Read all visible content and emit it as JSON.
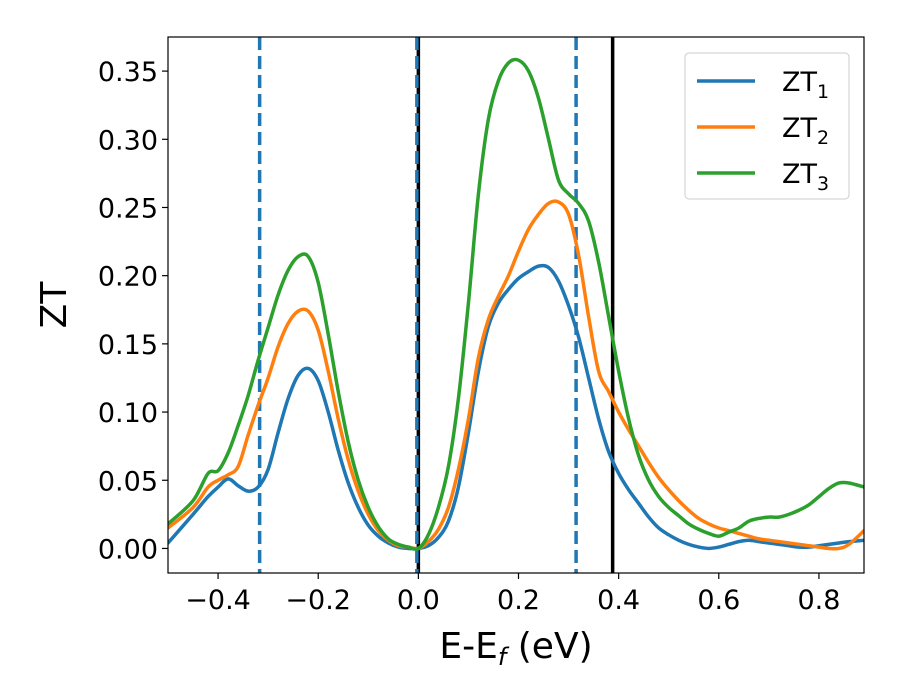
{
  "chart_data": {
    "type": "line",
    "xlabel": "E-E",
    "xlabel_sub": "f",
    "xlabel_unit": " (eV)",
    "ylabel": "ZT",
    "xlim": [
      -0.5,
      0.89
    ],
    "ylim": [
      -0.018,
      0.375
    ],
    "xticks": [
      -0.4,
      -0.2,
      0.0,
      0.2,
      0.4,
      0.6,
      0.8
    ],
    "xtick_labels": [
      "−0.4",
      "−0.2",
      "0.0",
      "0.2",
      "0.4",
      "0.6",
      "0.8"
    ],
    "yticks": [
      0.0,
      0.05,
      0.1,
      0.15,
      0.2,
      0.25,
      0.3,
      0.35
    ],
    "ytick_labels": [
      "0.00",
      "0.05",
      "0.10",
      "0.15",
      "0.20",
      "0.25",
      "0.30",
      "0.35"
    ],
    "grid": false,
    "legend_position": "top-right",
    "vlines": [
      {
        "x": -0.317,
        "style": "dashed",
        "color": "#1f77b4"
      },
      {
        "x": 0.0,
        "style": "solid",
        "color": "#000000"
      },
      {
        "x": -0.003,
        "style": "dashed",
        "color": "#1f77b4"
      },
      {
        "x": 0.315,
        "style": "dashed",
        "color": "#1f77b4"
      },
      {
        "x": 0.388,
        "style": "solid",
        "color": "#000000"
      }
    ],
    "series": [
      {
        "name": "ZT",
        "sub": "1",
        "color": "#1f77b4",
        "x": [
          -0.5,
          -0.45,
          -0.42,
          -0.4,
          -0.38,
          -0.36,
          -0.34,
          -0.32,
          -0.3,
          -0.28,
          -0.26,
          -0.24,
          -0.22,
          -0.2,
          -0.18,
          -0.16,
          -0.14,
          -0.12,
          -0.1,
          -0.08,
          -0.06,
          -0.04,
          -0.02,
          0.0,
          0.02,
          0.04,
          0.06,
          0.08,
          0.1,
          0.12,
          0.14,
          0.16,
          0.18,
          0.2,
          0.22,
          0.24,
          0.26,
          0.28,
          0.3,
          0.32,
          0.34,
          0.36,
          0.38,
          0.4,
          0.42,
          0.44,
          0.46,
          0.48,
          0.5,
          0.52,
          0.54,
          0.56,
          0.58,
          0.6,
          0.62,
          0.64,
          0.66,
          0.68,
          0.7,
          0.72,
          0.74,
          0.76,
          0.78,
          0.8,
          0.82,
          0.84,
          0.86,
          0.89
        ],
        "values": [
          0.004,
          0.025,
          0.038,
          0.045,
          0.051,
          0.046,
          0.042,
          0.045,
          0.058,
          0.085,
          0.11,
          0.127,
          0.132,
          0.123,
          0.1,
          0.072,
          0.048,
          0.03,
          0.017,
          0.009,
          0.004,
          0.001,
          0.0,
          0.0,
          0.002,
          0.008,
          0.02,
          0.045,
          0.085,
          0.13,
          0.163,
          0.18,
          0.19,
          0.198,
          0.203,
          0.207,
          0.206,
          0.196,
          0.178,
          0.155,
          0.125,
          0.095,
          0.071,
          0.055,
          0.043,
          0.033,
          0.023,
          0.015,
          0.01,
          0.006,
          0.003,
          0.001,
          0.0,
          0.001,
          0.003,
          0.005,
          0.006,
          0.005,
          0.004,
          0.003,
          0.002,
          0.001,
          0.001,
          0.002,
          0.003,
          0.004,
          0.005,
          0.006
        ]
      },
      {
        "name": "ZT",
        "sub": "2",
        "color": "#ff7f0e",
        "x": [
          -0.5,
          -0.45,
          -0.42,
          -0.4,
          -0.38,
          -0.36,
          -0.34,
          -0.32,
          -0.3,
          -0.28,
          -0.26,
          -0.24,
          -0.22,
          -0.2,
          -0.18,
          -0.16,
          -0.14,
          -0.12,
          -0.1,
          -0.08,
          -0.06,
          -0.04,
          -0.02,
          0.0,
          0.02,
          0.04,
          0.06,
          0.08,
          0.1,
          0.12,
          0.14,
          0.16,
          0.18,
          0.2,
          0.22,
          0.24,
          0.26,
          0.28,
          0.3,
          0.32,
          0.34,
          0.36,
          0.38,
          0.4,
          0.42,
          0.44,
          0.46,
          0.48,
          0.5,
          0.52,
          0.54,
          0.56,
          0.58,
          0.6,
          0.62,
          0.64,
          0.66,
          0.68,
          0.7,
          0.72,
          0.74,
          0.76,
          0.78,
          0.8,
          0.82,
          0.84,
          0.86,
          0.89
        ],
        "values": [
          0.015,
          0.03,
          0.045,
          0.05,
          0.054,
          0.06,
          0.083,
          0.105,
          0.125,
          0.148,
          0.165,
          0.174,
          0.174,
          0.16,
          0.13,
          0.095,
          0.065,
          0.042,
          0.025,
          0.013,
          0.006,
          0.002,
          0.001,
          0.0,
          0.005,
          0.014,
          0.03,
          0.058,
          0.095,
          0.14,
          0.168,
          0.185,
          0.2,
          0.218,
          0.234,
          0.245,
          0.253,
          0.254,
          0.245,
          0.215,
          0.17,
          0.13,
          0.115,
          0.1,
          0.087,
          0.075,
          0.063,
          0.052,
          0.043,
          0.035,
          0.028,
          0.022,
          0.018,
          0.015,
          0.013,
          0.011,
          0.009,
          0.007,
          0.006,
          0.005,
          0.004,
          0.003,
          0.002,
          0.001,
          0.0,
          0.0,
          0.003,
          0.013
        ]
      },
      {
        "name": "ZT",
        "sub": "3",
        "color": "#2ca02c",
        "x": [
          -0.5,
          -0.45,
          -0.42,
          -0.4,
          -0.38,
          -0.36,
          -0.34,
          -0.32,
          -0.3,
          -0.28,
          -0.26,
          -0.24,
          -0.22,
          -0.2,
          -0.18,
          -0.16,
          -0.14,
          -0.12,
          -0.1,
          -0.08,
          -0.06,
          -0.04,
          -0.02,
          0.0,
          0.02,
          0.04,
          0.06,
          0.08,
          0.1,
          0.12,
          0.14,
          0.16,
          0.18,
          0.2,
          0.22,
          0.24,
          0.26,
          0.28,
          0.3,
          0.32,
          0.34,
          0.36,
          0.38,
          0.4,
          0.42,
          0.44,
          0.46,
          0.48,
          0.5,
          0.52,
          0.54,
          0.56,
          0.58,
          0.6,
          0.62,
          0.64,
          0.66,
          0.68,
          0.7,
          0.72,
          0.74,
          0.76,
          0.78,
          0.8,
          0.82,
          0.84,
          0.86,
          0.89
        ],
        "values": [
          0.018,
          0.035,
          0.055,
          0.057,
          0.07,
          0.09,
          0.112,
          0.138,
          0.162,
          0.186,
          0.204,
          0.214,
          0.214,
          0.195,
          0.157,
          0.115,
          0.078,
          0.05,
          0.03,
          0.016,
          0.007,
          0.003,
          0.001,
          0.0,
          0.01,
          0.03,
          0.06,
          0.11,
          0.18,
          0.26,
          0.315,
          0.343,
          0.356,
          0.358,
          0.35,
          0.33,
          0.3,
          0.27,
          0.26,
          0.253,
          0.24,
          0.21,
          0.17,
          0.13,
          0.095,
          0.068,
          0.05,
          0.038,
          0.03,
          0.024,
          0.018,
          0.014,
          0.011,
          0.009,
          0.012,
          0.015,
          0.02,
          0.022,
          0.023,
          0.023,
          0.025,
          0.028,
          0.032,
          0.038,
          0.044,
          0.048,
          0.048,
          0.045
        ]
      }
    ]
  }
}
